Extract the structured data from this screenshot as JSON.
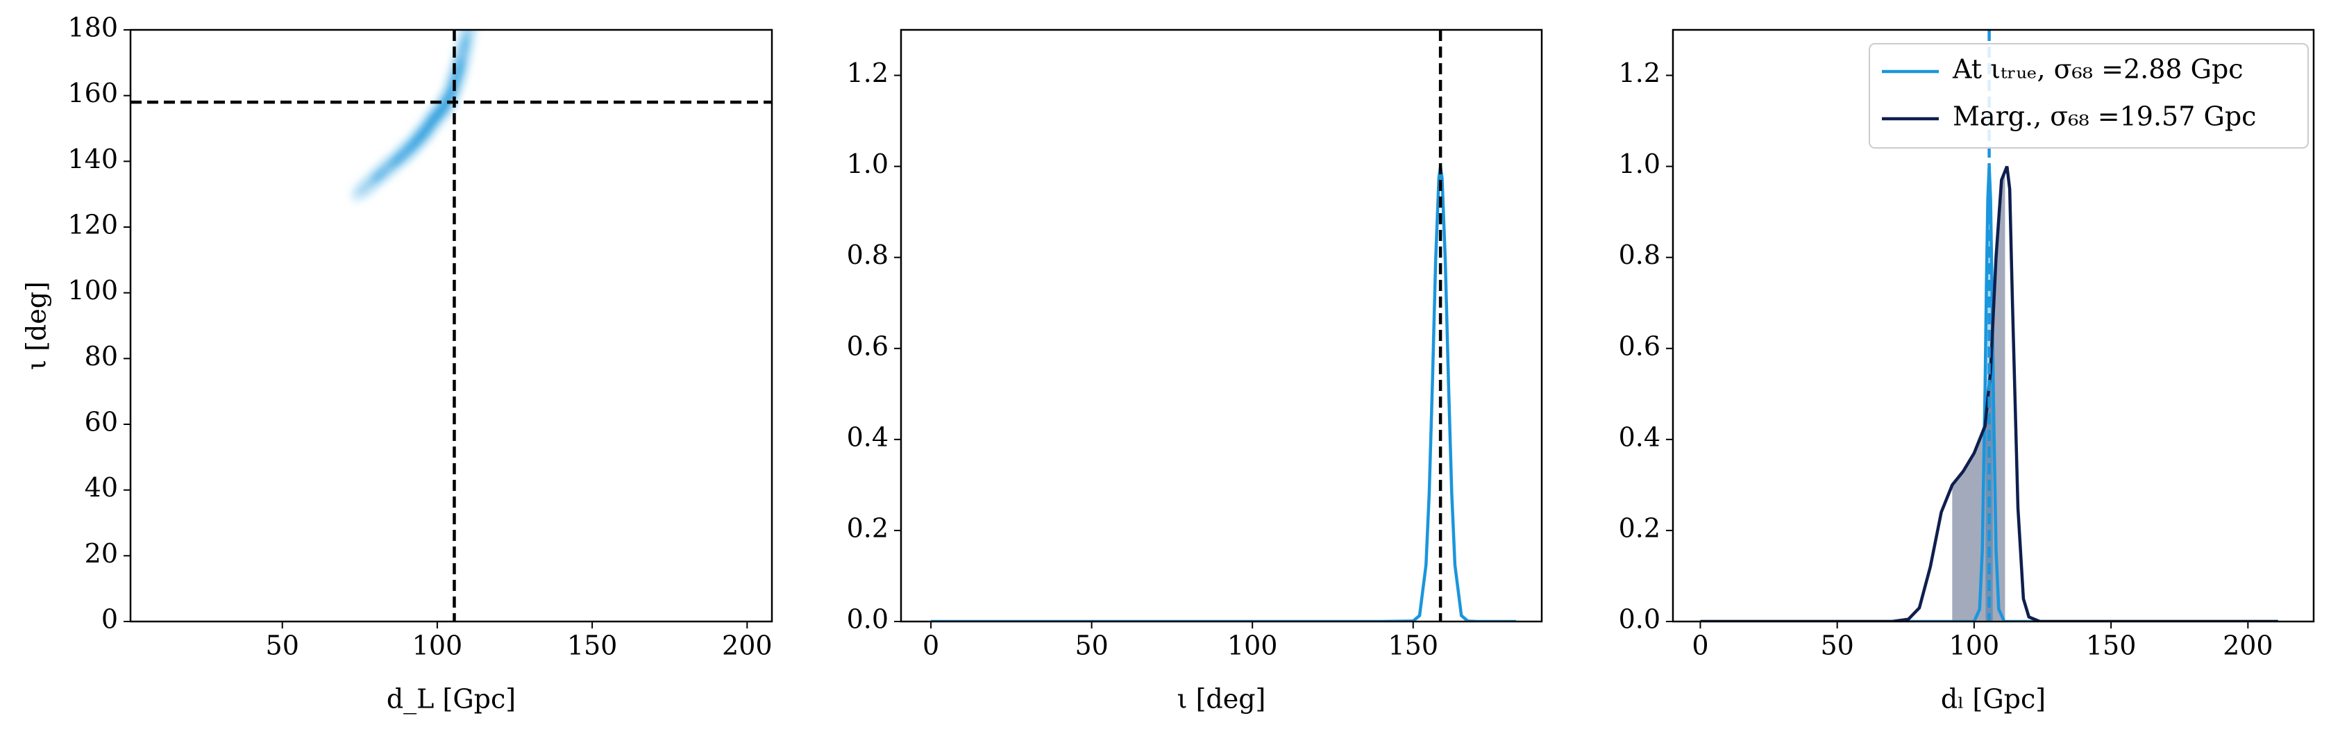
{
  "chart_data": [
    {
      "type": "density",
      "xlabel": "d_L [Gpc]",
      "ylabel": "ι [deg]",
      "xlim": [
        1,
        208
      ],
      "ylim": [
        0,
        180
      ],
      "xticks": [
        50,
        100,
        150,
        200
      ],
      "yticks": [
        0,
        20,
        40,
        60,
        80,
        100,
        120,
        140,
        160,
        180
      ],
      "vline": 105.5,
      "hline": 158,
      "x": [
        78,
        84,
        90,
        95,
        99,
        103,
        106,
        108,
        110
      ],
      "y": [
        133,
        138,
        143,
        148,
        153,
        158,
        165,
        172,
        180
      ],
      "color": "#1a96dc"
    },
    {
      "type": "line",
      "xlabel": "ι [deg]",
      "xlim": [
        -9.3,
        190
      ],
      "ylim": [
        0,
        1.3
      ],
      "xticks": [
        0,
        50,
        100,
        150
      ],
      "yticks": [
        {
          "value": 0,
          "label": "0.0"
        },
        0.2,
        0.4,
        0.6,
        0.8,
        {
          "value": 1,
          "label": "1.0"
        },
        1.2
      ],
      "vline": 158.5,
      "series": [
        {
          "color": "#1a96dc",
          "x": [
            0,
            50,
            100,
            140,
            150,
            152,
            154,
            155,
            156,
            157,
            158,
            158.5,
            159,
            160,
            161,
            162,
            163,
            165,
            167,
            170,
            182
          ],
          "values": [
            0,
            0,
            0,
            0,
            0.001,
            0.013,
            0.124,
            0.282,
            0.524,
            0.793,
            0.974,
            1,
            0.974,
            0.793,
            0.524,
            0.282,
            0.124,
            0.013,
            0.001,
            0,
            0
          ]
        }
      ]
    },
    {
      "type": "line",
      "xlabel": "dₗ [Gpc]",
      "xlim": [
        -10,
        224
      ],
      "ylim": [
        0,
        1.3
      ],
      "xticks": [
        0,
        50,
        100,
        150,
        200
      ],
      "yticks": [
        {
          "value": 0,
          "label": "0.0"
        },
        0.2,
        0.4,
        0.6,
        0.8,
        {
          "value": 1,
          "label": "1.0"
        },
        1.2
      ],
      "vline": 105.5,
      "vline_color": "#1a96dc",
      "legend": "upper right",
      "series": [
        {
          "name": "At ιₜᵣᵤₑ, σ₆₈ =2.88 Gpc",
          "color": "#1a96dc",
          "x": [
            0,
            100,
            102,
            103,
            104,
            104.5,
            105,
            105.5,
            106,
            106.5,
            107,
            108,
            109,
            111,
            211
          ],
          "values": [
            0,
            0,
            0.027,
            0.157,
            0.514,
            0.744,
            0.929,
            1,
            0.929,
            0.744,
            0.514,
            0.157,
            0.027,
            0,
            0
          ],
          "interval": [
            104.2,
            106.8
          ]
        },
        {
          "name": "Marg., σ₆₈ =19.57 Gpc",
          "color": "#0e1f4e",
          "x": [
            0,
            70,
            76,
            80,
            84,
            88,
            92,
            96,
            100,
            104,
            106,
            108,
            110,
            112,
            113,
            114,
            116,
            118,
            120,
            124,
            211
          ],
          "values": [
            0,
            0,
            0.005,
            0.03,
            0.12,
            0.24,
            0.3,
            0.33,
            0.37,
            0.43,
            0.55,
            0.8,
            0.97,
            1,
            0.95,
            0.7,
            0.25,
            0.05,
            0.01,
            0,
            0
          ],
          "interval": [
            92,
            111.3
          ]
        }
      ]
    }
  ]
}
